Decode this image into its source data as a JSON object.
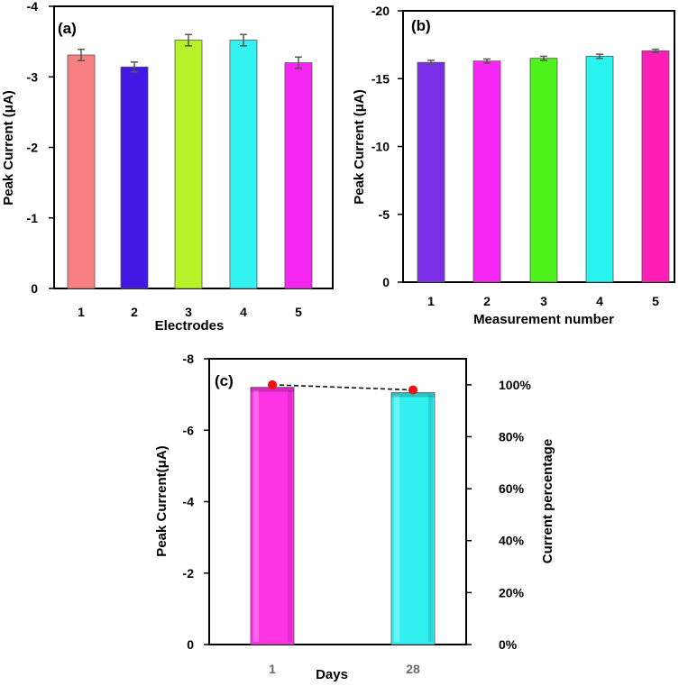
{
  "chart_data": [
    {
      "panel_label": "(a)",
      "type": "bar",
      "categories": [
        "1",
        "2",
        "3",
        "4",
        "5"
      ],
      "values": [
        -3.31,
        -3.14,
        -3.52,
        -3.52,
        -3.2
      ],
      "errors": [
        0.08,
        0.07,
        0.08,
        0.08,
        0.08
      ],
      "colors": [
        "#f88080",
        "#4318e4",
        "#b5f227",
        "#33f2f2",
        "#f526f0"
      ],
      "xlabel": "Electrodes",
      "ylabel": "Peak Current (μA)",
      "ylim": [
        0,
        -4
      ],
      "yticks": [
        0,
        -1,
        -2,
        -3,
        -4
      ],
      "ytick_labels": [
        "0",
        "-1",
        "-2",
        "-3",
        "-4"
      ]
    },
    {
      "panel_label": "(b)",
      "type": "bar",
      "categories": [
        "1",
        "2",
        "3",
        "4",
        "5"
      ],
      "values": [
        -16.2,
        -16.3,
        -16.5,
        -16.65,
        -17.05
      ],
      "errors": [
        0.15,
        0.15,
        0.15,
        0.15,
        0.12
      ],
      "colors": [
        "#7a2ee8",
        "#f826f2",
        "#4ef21c",
        "#29f4f0",
        "#ff1fb6"
      ],
      "xlabel": "Measurement number",
      "ylabel": "Peak Current (μA)",
      "ylim": [
        0,
        -20
      ],
      "yticks": [
        0,
        -5,
        -10,
        -15,
        -20
      ],
      "ytick_labels": [
        "0",
        "-5",
        "-10",
        "-15",
        "-20"
      ]
    },
    {
      "panel_label": "(c)",
      "type": "bar",
      "categories": [
        "1",
        "28"
      ],
      "values": [
        -7.2,
        -7.05
      ],
      "colors": [
        "#ff33e6",
        "#33f0f0"
      ],
      "xlabel": "Days",
      "ylabel": "Peak Current(μA)",
      "ylim": [
        0,
        -8
      ],
      "yticks": [
        0,
        -2,
        -4,
        -6,
        -8
      ],
      "ytick_labels": [
        "0",
        "-2",
        "-4",
        "-6",
        "-8"
      ],
      "secondary_axis": {
        "ylabel": "Current percentage",
        "ylim": [
          0,
          110
        ],
        "ticks": [
          0,
          20,
          40,
          60,
          80,
          100
        ],
        "tick_labels": [
          "0%",
          "20%",
          "40%",
          "60%",
          "80%",
          "100%"
        ],
        "series": {
          "name": "Current percentage",
          "type": "line",
          "style": "dashed",
          "marker": "circle",
          "marker_color": "#ee1111",
          "values": [
            100,
            98
          ]
        }
      }
    }
  ]
}
